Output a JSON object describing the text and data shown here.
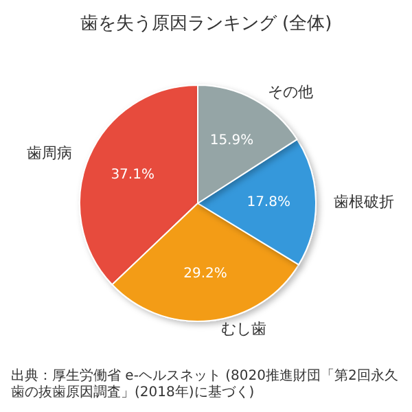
{
  "chart_data": {
    "type": "pie",
    "title": "歯を失う原因ランキング (全体)",
    "categories": [
      "歯周病",
      "むし歯",
      "歯根破折",
      "その他"
    ],
    "values": [
      37.1,
      29.2,
      17.8,
      15.9
    ],
    "value_labels": [
      "37.1%",
      "29.2%",
      "17.8%",
      "15.9%"
    ],
    "colors": [
      "#e74c3c",
      "#f39c12",
      "#3498db",
      "#95a5a6"
    ],
    "annotations": [
      "出典：厚生労働省 e-ヘルスネット (8020推進財団「第2回永久歯の抜歯原因調査」(2018年)に基づく)"
    ],
    "legend": false
  }
}
